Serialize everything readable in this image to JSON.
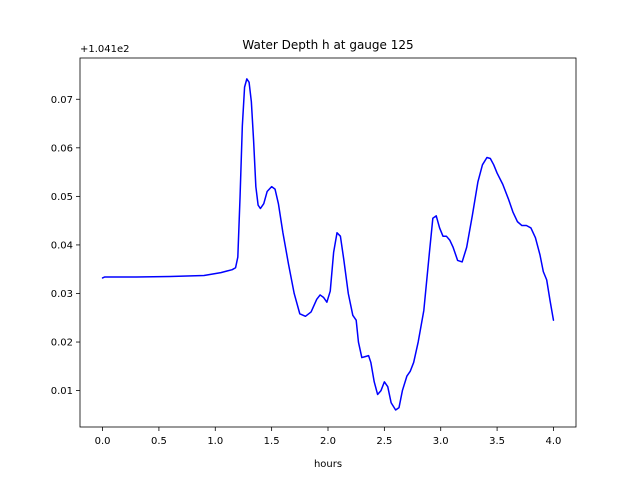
{
  "chart_data": {
    "type": "line",
    "title": "Water Depth h at gauge 125",
    "xlabel": "hours",
    "ylabel": "",
    "offset_label": "+1.041e2",
    "xlim": [
      -0.2,
      4.2
    ],
    "ylim": [
      0.0025,
      0.0785
    ],
    "xticks": [
      0.0,
      0.5,
      1.0,
      1.5,
      2.0,
      2.5,
      3.0,
      3.5,
      4.0
    ],
    "xtick_labels": [
      "0.0",
      "0.5",
      "1.0",
      "1.5",
      "2.0",
      "2.5",
      "3.0",
      "3.5",
      "4.0"
    ],
    "yticks": [
      0.01,
      0.02,
      0.03,
      0.04,
      0.05,
      0.06,
      0.07
    ],
    "ytick_labels": [
      "0.01",
      "0.02",
      "0.03",
      "0.04",
      "0.05",
      "0.06",
      "0.07"
    ],
    "grid": false,
    "series": [
      {
        "color": "#0000ff",
        "x": [
          0.0,
          0.02,
          0.3,
          0.6,
          0.9,
          1.05,
          1.1,
          1.15,
          1.18,
          1.2,
          1.22,
          1.24,
          1.26,
          1.28,
          1.3,
          1.32,
          1.34,
          1.36,
          1.38,
          1.4,
          1.43,
          1.46,
          1.5,
          1.53,
          1.56,
          1.6,
          1.65,
          1.7,
          1.75,
          1.8,
          1.85,
          1.9,
          1.93,
          1.96,
          1.99,
          2.02,
          2.05,
          2.08,
          2.11,
          2.14,
          2.18,
          2.22,
          2.25,
          2.27,
          2.3,
          2.33,
          2.36,
          2.38,
          2.41,
          2.44,
          2.47,
          2.5,
          2.53,
          2.56,
          2.6,
          2.63,
          2.66,
          2.7,
          2.73,
          2.76,
          2.8,
          2.85,
          2.9,
          2.93,
          2.96,
          2.99,
          3.02,
          3.05,
          3.08,
          3.11,
          3.15,
          3.19,
          3.23,
          3.28,
          3.33,
          3.37,
          3.41,
          3.44,
          3.47,
          3.5,
          3.55,
          3.6,
          3.64,
          3.68,
          3.72,
          3.76,
          3.8,
          3.84,
          3.88,
          3.91,
          3.94,
          3.97,
          4.0
        ],
        "y": [
          0.0332,
          0.0334,
          0.0334,
          0.0335,
          0.0337,
          0.0343,
          0.0346,
          0.0349,
          0.0353,
          0.0375,
          0.05,
          0.0645,
          0.0725,
          0.0742,
          0.0735,
          0.0695,
          0.0615,
          0.052,
          0.0482,
          0.0475,
          0.0485,
          0.051,
          0.052,
          0.0515,
          0.0485,
          0.0425,
          0.036,
          0.03,
          0.0258,
          0.0253,
          0.0262,
          0.0288,
          0.0297,
          0.0292,
          0.0282,
          0.0305,
          0.0385,
          0.0425,
          0.0418,
          0.037,
          0.03,
          0.0255,
          0.0245,
          0.02,
          0.0168,
          0.017,
          0.0172,
          0.0158,
          0.0118,
          0.0092,
          0.01,
          0.0118,
          0.0108,
          0.0075,
          0.006,
          0.0065,
          0.01,
          0.013,
          0.014,
          0.0158,
          0.02,
          0.0265,
          0.0385,
          0.0455,
          0.046,
          0.0435,
          0.0418,
          0.0418,
          0.041,
          0.0395,
          0.0368,
          0.0365,
          0.0395,
          0.046,
          0.053,
          0.0565,
          0.058,
          0.0578,
          0.0565,
          0.0548,
          0.0525,
          0.0495,
          0.0468,
          0.0448,
          0.044,
          0.044,
          0.0435,
          0.0415,
          0.038,
          0.0345,
          0.0328,
          0.0285,
          0.0245
        ]
      }
    ]
  }
}
